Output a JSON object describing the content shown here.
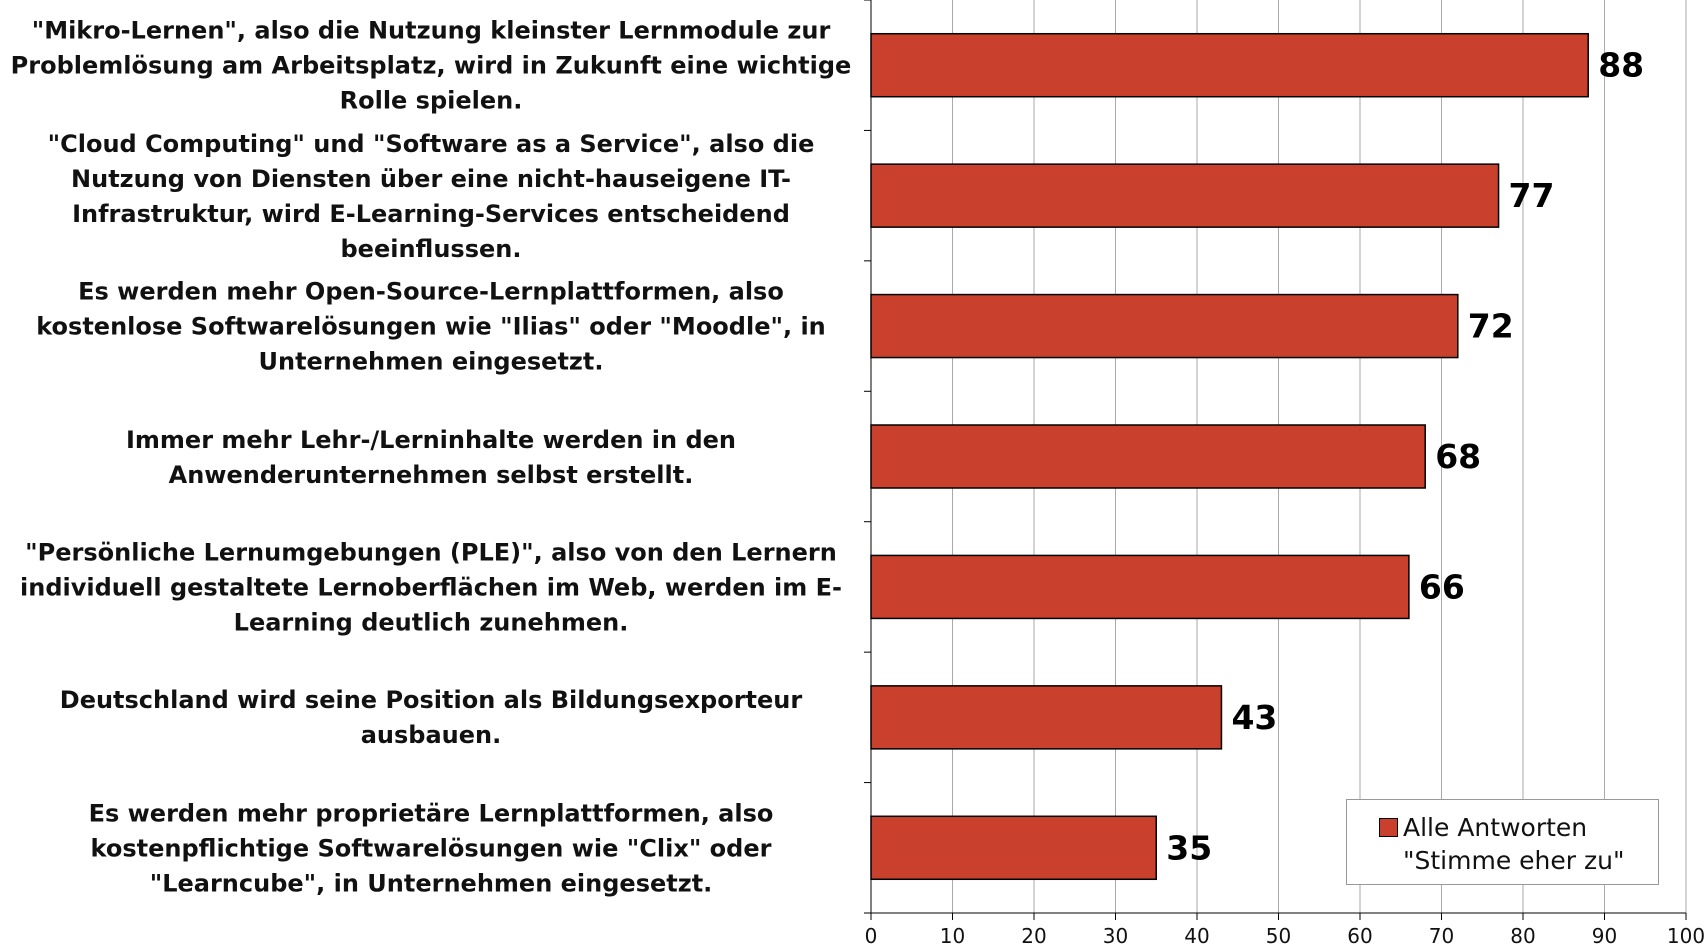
{
  "chart_data": {
    "type": "bar",
    "orientation": "horizontal",
    "categories": [
      "\"Mikro-Lernen\", also die Nutzung kleinster Lernmodule zur Problemlösung am Arbeitsplatz, wird in Zukunft eine wichtige Rolle spielen.",
      "\"Cloud Computing\" und \"Software as a Service\", also die Nutzung von Diensten über eine nicht-hauseigene IT-Infrastruktur, wird E-Learning-Services entscheidend beeinflussen.",
      "Es werden mehr Open-Source-Lernplattformen, also kostenlose Softwarelösungen wie \"Ilias\" oder \"Moodle\", in Unternehmen eingesetzt.",
      "Immer mehr Lehr-/Lerninhalte werden in den Anwenderunternehmen selbst erstellt.",
      "\"Persönliche Lernumgebungen (PLE)\", also von den Lernern individuell gestaltete Lernoberflächen im Web, werden im E-Learning deutlich zunehmen.",
      "Deutschland wird seine Position als Bildungsexporteur ausbauen.",
      "Es werden mehr proprietäre Lernplattformen, also kostenpflichtige Softwarelösungen wie \"Clix\" oder \"Learncube\", in Unternehmen eingesetzt."
    ],
    "series": [
      {
        "name": "Alle Antworten \"Stimme eher zu\"",
        "color": "#c9402c",
        "values": [
          88,
          77,
          72,
          68,
          66,
          43,
          35
        ]
      }
    ],
    "xlim": [
      0,
      100
    ],
    "xticks": [
      0,
      10,
      20,
      30,
      40,
      50,
      60,
      70,
      80,
      90,
      100
    ],
    "grid": true,
    "legend_position": "lower right"
  }
}
